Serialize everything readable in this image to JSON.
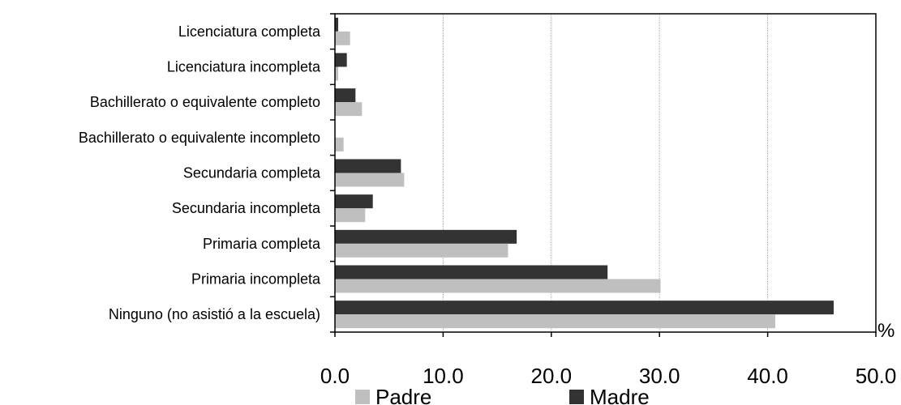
{
  "chart_data": {
    "type": "bar",
    "orientation": "horizontal",
    "categories": [
      "Licenciatura completa",
      "Licenciatura incompleta",
      "Bachillerato o equivalente completo",
      "Bachillerato o equivalente incompleto",
      "Secundaria completa",
      "Secundaria incompleta",
      "Primaria completa",
      "Primaria incompleta",
      "Ninguno (no asistió a la escuela)"
    ],
    "series": [
      {
        "name": "Madre",
        "color": "#333333",
        "values": [
          0.3,
          1.1,
          1.9,
          0.0,
          6.1,
          3.5,
          16.8,
          25.2,
          46.1
        ]
      },
      {
        "name": "Padre",
        "color": "#bfbfbf",
        "values": [
          1.4,
          0.3,
          2.5,
          0.8,
          6.4,
          2.8,
          16.0,
          30.1,
          40.7
        ]
      }
    ],
    "xlim": [
      0,
      50
    ],
    "xticks": [
      "0.0",
      "10.0",
      "20.0",
      "30.0",
      "40.0",
      "50.0"
    ],
    "x_unit": "%",
    "grid": "vertical",
    "legend": "bottom",
    "legend_items": [
      {
        "name": "Padre",
        "color": "#bfbfbf"
      },
      {
        "name": "Madre",
        "color": "#333333"
      }
    ]
  }
}
